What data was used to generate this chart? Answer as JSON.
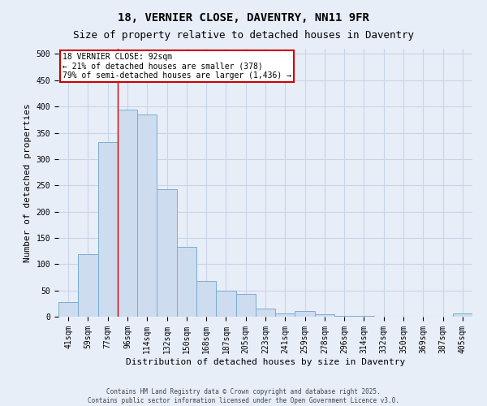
{
  "title": "18, VERNIER CLOSE, DAVENTRY, NN11 9FR",
  "subtitle": "Size of property relative to detached houses in Daventry",
  "xlabel": "Distribution of detached houses by size in Daventry",
  "ylabel": "Number of detached properties",
  "categories": [
    "41sqm",
    "59sqm",
    "77sqm",
    "96sqm",
    "114sqm",
    "132sqm",
    "150sqm",
    "168sqm",
    "187sqm",
    "205sqm",
    "223sqm",
    "241sqm",
    "259sqm",
    "278sqm",
    "296sqm",
    "314sqm",
    "332sqm",
    "350sqm",
    "369sqm",
    "387sqm",
    "405sqm"
  ],
  "values": [
    28,
    119,
    333,
    394,
    385,
    243,
    133,
    68,
    50,
    44,
    16,
    6,
    11,
    5,
    1,
    1,
    0,
    0,
    0,
    0,
    6
  ],
  "bar_color": "#cddcee",
  "bar_edge_color": "#7aadd4",
  "red_line_index": 3,
  "annotation_line1": "18 VERNIER CLOSE: 92sqm",
  "annotation_line2": "← 21% of detached houses are smaller (378)",
  "annotation_line3": "79% of semi-detached houses are larger (1,436) →",
  "annotation_box_facecolor": "#ffffff",
  "annotation_box_edgecolor": "#cc0000",
  "footer_line1": "Contains HM Land Registry data © Crown copyright and database right 2025.",
  "footer_line2": "Contains public sector information licensed under the Open Government Licence v3.0.",
  "ylim": [
    0,
    510
  ],
  "yticks": [
    0,
    50,
    100,
    150,
    200,
    250,
    300,
    350,
    400,
    450,
    500
  ],
  "grid_color": "#c8d4e8",
  "background_color": "#e8eef8",
  "title_fontsize": 10,
  "subtitle_fontsize": 9,
  "axis_label_fontsize": 8,
  "tick_fontsize": 7,
  "footer_fontsize": 5.5
}
